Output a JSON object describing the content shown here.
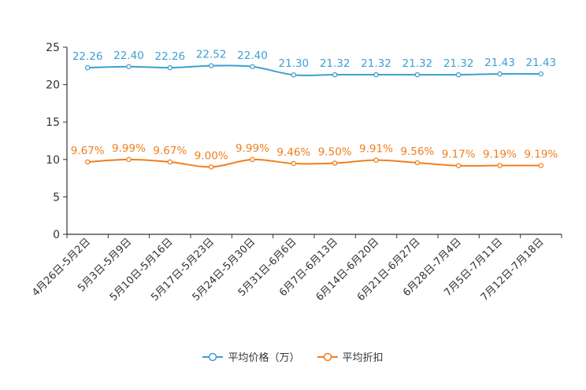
{
  "chart_data": {
    "type": "line",
    "categories": [
      "4月26日-5月2日",
      "5月3日-5月9日",
      "5月10日-5月16日",
      "5月17日-5月23日",
      "5月24日-5月30日",
      "5月31日-6月6日",
      "6月7日-6月13日",
      "6月14日-6月20日",
      "6月21日-6月27日",
      "6月28日-7月4日",
      "7月5日-7月11日",
      "7月12日-7月18日"
    ],
    "series": [
      {
        "name": "平均价格（万）",
        "color": "#3f9fd1",
        "values": [
          22.26,
          22.4,
          22.26,
          22.52,
          22.4,
          21.3,
          21.32,
          21.32,
          21.32,
          21.32,
          21.43,
          21.43
        ],
        "labels": [
          "22.26",
          "22.40",
          "22.26",
          "22.52",
          "22.40",
          "21.30",
          "21.32",
          "21.32",
          "21.32",
          "21.32",
          "21.43",
          "21.43"
        ]
      },
      {
        "name": "平均折扣",
        "color": "#f07f1e",
        "values": [
          9.67,
          9.99,
          9.67,
          9.0,
          9.99,
          9.46,
          9.5,
          9.91,
          9.56,
          9.17,
          9.19,
          9.19
        ],
        "labels": [
          "9.67%",
          "9.99%",
          "9.67%",
          "9.00%",
          "9.99%",
          "9.46%",
          "9.50%",
          "9.91%",
          "9.56%",
          "9.17%",
          "9.19%",
          "9.19%"
        ]
      }
    ],
    "yticks": [
      "0",
      "5",
      "10",
      "15",
      "20",
      "25"
    ],
    "ylim": [
      0,
      25
    ],
    "title": "",
    "xlabel": "",
    "ylabel": "",
    "legend_position": "bottom-center"
  }
}
